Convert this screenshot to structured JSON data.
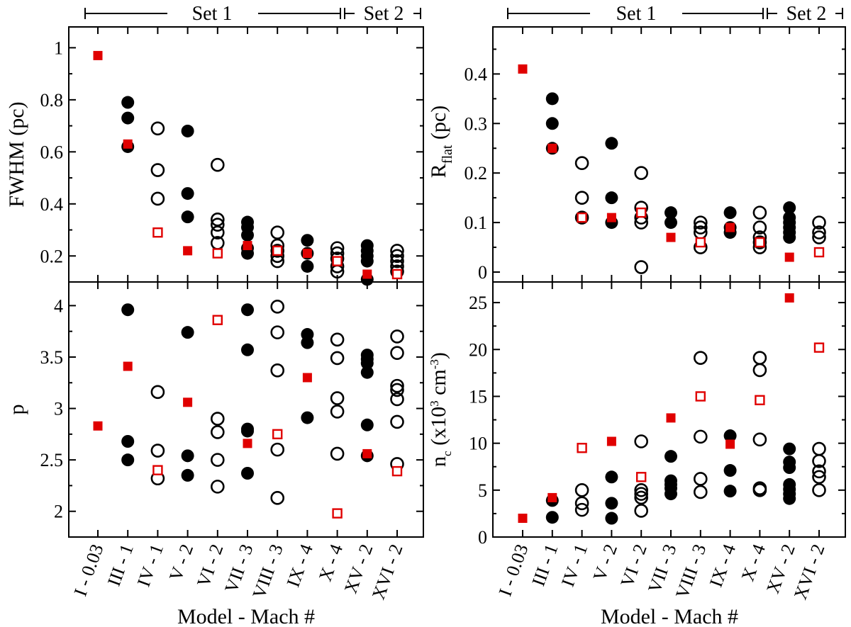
{
  "set_labels": {
    "set1": "Set 1",
    "set2": "Set 2"
  },
  "x_title": "Model - Mach #",
  "colors": {
    "marker_black": "#000000",
    "marker_red": "#e00000"
  },
  "categories": [
    "I - 0.03",
    "III - 1",
    "IV - 1",
    "V - 2",
    "VI - 2",
    "VII - 3",
    "VIII - 3",
    "IX - 4",
    "X - 4",
    "XV - 2",
    "XVI - 2"
  ],
  "chart_data": [
    {
      "type": "scatter",
      "panel": "top-left",
      "ylabel": "FWHM (pc)",
      "ylim": [
        0.1,
        1.08
      ],
      "yticks": [
        0.2,
        0.4,
        0.6,
        0.8,
        1
      ],
      "ytick_labels": [
        "0.2",
        "0.4",
        "0.6",
        "0.8",
        "1"
      ],
      "series": [
        {
          "marker": "filled-circle",
          "color": "#000000",
          "points": [
            [
              1,
              0.79
            ],
            [
              1,
              0.73
            ],
            [
              1,
              0.62
            ],
            [
              3,
              0.68
            ],
            [
              3,
              0.44
            ],
            [
              3,
              0.35
            ],
            [
              5,
              0.33
            ],
            [
              5,
              0.31
            ],
            [
              5,
              0.28
            ],
            [
              5,
              0.23
            ],
            [
              5,
              0.21
            ],
            [
              7,
              0.26
            ],
            [
              7,
              0.21
            ],
            [
              7,
              0.16
            ],
            [
              9,
              0.24
            ],
            [
              9,
              0.22
            ],
            [
              9,
              0.2
            ],
            [
              9,
              0.18
            ],
            [
              9,
              0.11
            ]
          ]
        },
        {
          "marker": "open-circle",
          "color": "#000000",
          "points": [
            [
              2,
              0.69
            ],
            [
              2,
              0.53
            ],
            [
              2,
              0.42
            ],
            [
              4,
              0.55
            ],
            [
              4,
              0.34
            ],
            [
              4,
              0.32
            ],
            [
              4,
              0.29
            ],
            [
              4,
              0.25
            ],
            [
              6,
              0.29
            ],
            [
              6,
              0.24
            ],
            [
              6,
              0.22
            ],
            [
              6,
              0.2
            ],
            [
              6,
              0.18
            ],
            [
              8,
              0.23
            ],
            [
              8,
              0.21
            ],
            [
              8,
              0.19
            ],
            [
              8,
              0.16
            ],
            [
              8,
              0.14
            ],
            [
              10,
              0.22
            ],
            [
              10,
              0.2
            ],
            [
              10,
              0.18
            ],
            [
              10,
              0.16
            ],
            [
              10,
              0.14
            ]
          ]
        },
        {
          "marker": "filled-square",
          "color": "#e00000",
          "points": [
            [
              0,
              0.97
            ],
            [
              1,
              0.63
            ],
            [
              3,
              0.22
            ],
            [
              5,
              0.24
            ],
            [
              7,
              0.21
            ],
            [
              9,
              0.13
            ]
          ]
        },
        {
          "marker": "open-square",
          "color": "#e00000",
          "points": [
            [
              2,
              0.29
            ],
            [
              4,
              0.21
            ],
            [
              6,
              0.22
            ],
            [
              8,
              0.18
            ],
            [
              10,
              0.13
            ]
          ]
        }
      ]
    },
    {
      "type": "scatter",
      "panel": "top-right",
      "ylabel_main": "R",
      "ylabel_sub": "flat",
      "ylabel_tail": " (pc)",
      "ylim": [
        -0.02,
        0.495
      ],
      "yticks": [
        0,
        0.1,
        0.2,
        0.3,
        0.4
      ],
      "ytick_labels": [
        "0",
        "0.1",
        "0.2",
        "0.3",
        "0.4"
      ],
      "series": [
        {
          "marker": "filled-circle",
          "color": "#000000",
          "points": [
            [
              1,
              0.35
            ],
            [
              1,
              0.3
            ],
            [
              1,
              0.25
            ],
            [
              3,
              0.26
            ],
            [
              3,
              0.15
            ],
            [
              3,
              0.1
            ],
            [
              5,
              0.12
            ],
            [
              5,
              0.1
            ],
            [
              7,
              0.12
            ],
            [
              7,
              0.09
            ],
            [
              7,
              0.08
            ],
            [
              9,
              0.13
            ],
            [
              9,
              0.11
            ],
            [
              9,
              0.1
            ],
            [
              9,
              0.09
            ],
            [
              9,
              0.08
            ],
            [
              9,
              0.07
            ]
          ]
        },
        {
          "marker": "open-circle",
          "color": "#000000",
          "points": [
            [
              2,
              0.22
            ],
            [
              2,
              0.15
            ],
            [
              2,
              0.11
            ],
            [
              4,
              0.2
            ],
            [
              4,
              0.13
            ],
            [
              4,
              0.11
            ],
            [
              4,
              0.1
            ],
            [
              4,
              0.01
            ],
            [
              6,
              0.1
            ],
            [
              6,
              0.09
            ],
            [
              6,
              0.08
            ],
            [
              6,
              0.05
            ],
            [
              8,
              0.12
            ],
            [
              8,
              0.09
            ],
            [
              8,
              0.07
            ],
            [
              8,
              0.06
            ],
            [
              8,
              0.05
            ],
            [
              10,
              0.1
            ],
            [
              10,
              0.08
            ],
            [
              10,
              0.07
            ]
          ]
        },
        {
          "marker": "filled-square",
          "color": "#e00000",
          "points": [
            [
              0,
              0.41
            ],
            [
              1,
              0.25
            ],
            [
              3,
              0.11
            ],
            [
              5,
              0.07
            ],
            [
              7,
              0.09
            ],
            [
              9,
              0.03
            ]
          ]
        },
        {
          "marker": "open-square",
          "color": "#e00000",
          "points": [
            [
              2,
              0.11
            ],
            [
              4,
              0.12
            ],
            [
              6,
              0.06
            ],
            [
              8,
              0.06
            ],
            [
              10,
              0.04
            ]
          ]
        }
      ]
    },
    {
      "type": "scatter",
      "panel": "bottom-left",
      "ylabel": "p",
      "ylim": [
        1.75,
        4.23
      ],
      "yticks": [
        2,
        2.5,
        3,
        3.5,
        4
      ],
      "ytick_labels": [
        "2",
        "2.5",
        "3",
        "3.5",
        "4"
      ],
      "series": [
        {
          "marker": "filled-circle",
          "color": "#000000",
          "points": [
            [
              1,
              3.96
            ],
            [
              1,
              2.68
            ],
            [
              1,
              2.5
            ],
            [
              3,
              3.74
            ],
            [
              3,
              2.54
            ],
            [
              3,
              2.35
            ],
            [
              5,
              3.96
            ],
            [
              5,
              3.57
            ],
            [
              5,
              2.8
            ],
            [
              5,
              2.78
            ],
            [
              5,
              2.37
            ],
            [
              7,
              3.72
            ],
            [
              7,
              3.64
            ],
            [
              7,
              2.91
            ],
            [
              9,
              3.52
            ],
            [
              9,
              3.48
            ],
            [
              9,
              3.44
            ],
            [
              9,
              3.35
            ],
            [
              9,
              2.84
            ],
            [
              9,
              2.54
            ]
          ]
        },
        {
          "marker": "open-circle",
          "color": "#000000",
          "points": [
            [
              2,
              3.16
            ],
            [
              2,
              2.59
            ],
            [
              2,
              2.32
            ],
            [
              4,
              2.9
            ],
            [
              4,
              2.77
            ],
            [
              4,
              2.5
            ],
            [
              4,
              2.24
            ],
            [
              6,
              3.99
            ],
            [
              6,
              3.74
            ],
            [
              6,
              3.37
            ],
            [
              6,
              2.6
            ],
            [
              6,
              2.13
            ],
            [
              8,
              3.67
            ],
            [
              8,
              3.49
            ],
            [
              8,
              3.1
            ],
            [
              8,
              2.97
            ],
            [
              8,
              2.56
            ],
            [
              10,
              3.7
            ],
            [
              10,
              3.54
            ],
            [
              10,
              3.22
            ],
            [
              10,
              3.18
            ],
            [
              10,
              3.09
            ],
            [
              10,
              2.87
            ],
            [
              10,
              2.46
            ]
          ]
        },
        {
          "marker": "filled-square",
          "color": "#e00000",
          "points": [
            [
              0,
              2.83
            ],
            [
              1,
              3.41
            ],
            [
              3,
              3.06
            ],
            [
              5,
              2.66
            ],
            [
              7,
              3.3
            ],
            [
              9,
              2.56
            ]
          ]
        },
        {
          "marker": "open-square",
          "color": "#e00000",
          "points": [
            [
              2,
              2.4
            ],
            [
              4,
              3.86
            ],
            [
              6,
              2.75
            ],
            [
              8,
              1.98
            ],
            [
              10,
              2.39
            ]
          ]
        }
      ]
    },
    {
      "type": "scatter",
      "panel": "bottom-right",
      "ylabel_main": "n",
      "ylabel_sub": "c",
      "ylabel_tail": " (x10",
      "ylabel_sup1": "3",
      "ylabel_mid": " cm",
      "ylabel_sup2": "-3",
      "ylabel_end": ")",
      "ylim": [
        0,
        27.2
      ],
      "yticks": [
        0,
        5,
        10,
        15,
        20,
        25
      ],
      "ytick_labels": [
        "0",
        "5",
        "10",
        "15",
        "20",
        "25"
      ],
      "series": [
        {
          "marker": "filled-circle",
          "color": "#000000",
          "points": [
            [
              1,
              3.9
            ],
            [
              1,
              2.1
            ],
            [
              3,
              6.4
            ],
            [
              3,
              3.6
            ],
            [
              3,
              2.0
            ],
            [
              5,
              8.6
            ],
            [
              5,
              6.0
            ],
            [
              5,
              5.6
            ],
            [
              5,
              5.2
            ],
            [
              5,
              4.6
            ],
            [
              7,
              10.8
            ],
            [
              7,
              7.1
            ],
            [
              7,
              4.9
            ],
            [
              9,
              9.4
            ],
            [
              9,
              8.0
            ],
            [
              9,
              7.4
            ],
            [
              9,
              5.6
            ],
            [
              9,
              5.1
            ],
            [
              9,
              4.6
            ],
            [
              9,
              4.1
            ]
          ]
        },
        {
          "marker": "open-circle",
          "color": "#000000",
          "points": [
            [
              2,
              5.0
            ],
            [
              2,
              3.6
            ],
            [
              2,
              2.9
            ],
            [
              4,
              10.2
            ],
            [
              4,
              5.0
            ],
            [
              4,
              4.6
            ],
            [
              4,
              4.2
            ],
            [
              4,
              2.8
            ],
            [
              6,
              19.1
            ],
            [
              6,
              10.7
            ],
            [
              6,
              6.2
            ],
            [
              6,
              4.8
            ],
            [
              8,
              19.1
            ],
            [
              8,
              17.8
            ],
            [
              8,
              10.4
            ],
            [
              8,
              5.2
            ],
            [
              8,
              5.0
            ],
            [
              10,
              9.4
            ],
            [
              10,
              8.1
            ],
            [
              10,
              7.0
            ],
            [
              10,
              6.4
            ],
            [
              10,
              5.0
            ]
          ]
        },
        {
          "marker": "filled-square",
          "color": "#e00000",
          "points": [
            [
              0,
              2.0
            ],
            [
              1,
              4.2
            ],
            [
              3,
              10.2
            ],
            [
              5,
              12.7
            ],
            [
              7,
              9.9
            ],
            [
              9,
              25.5
            ]
          ]
        },
        {
          "marker": "open-square",
          "color": "#e00000",
          "points": [
            [
              2,
              9.5
            ],
            [
              4,
              6.4
            ],
            [
              6,
              15.0
            ],
            [
              8,
              14.6
            ],
            [
              10,
              20.2
            ]
          ]
        }
      ]
    }
  ]
}
